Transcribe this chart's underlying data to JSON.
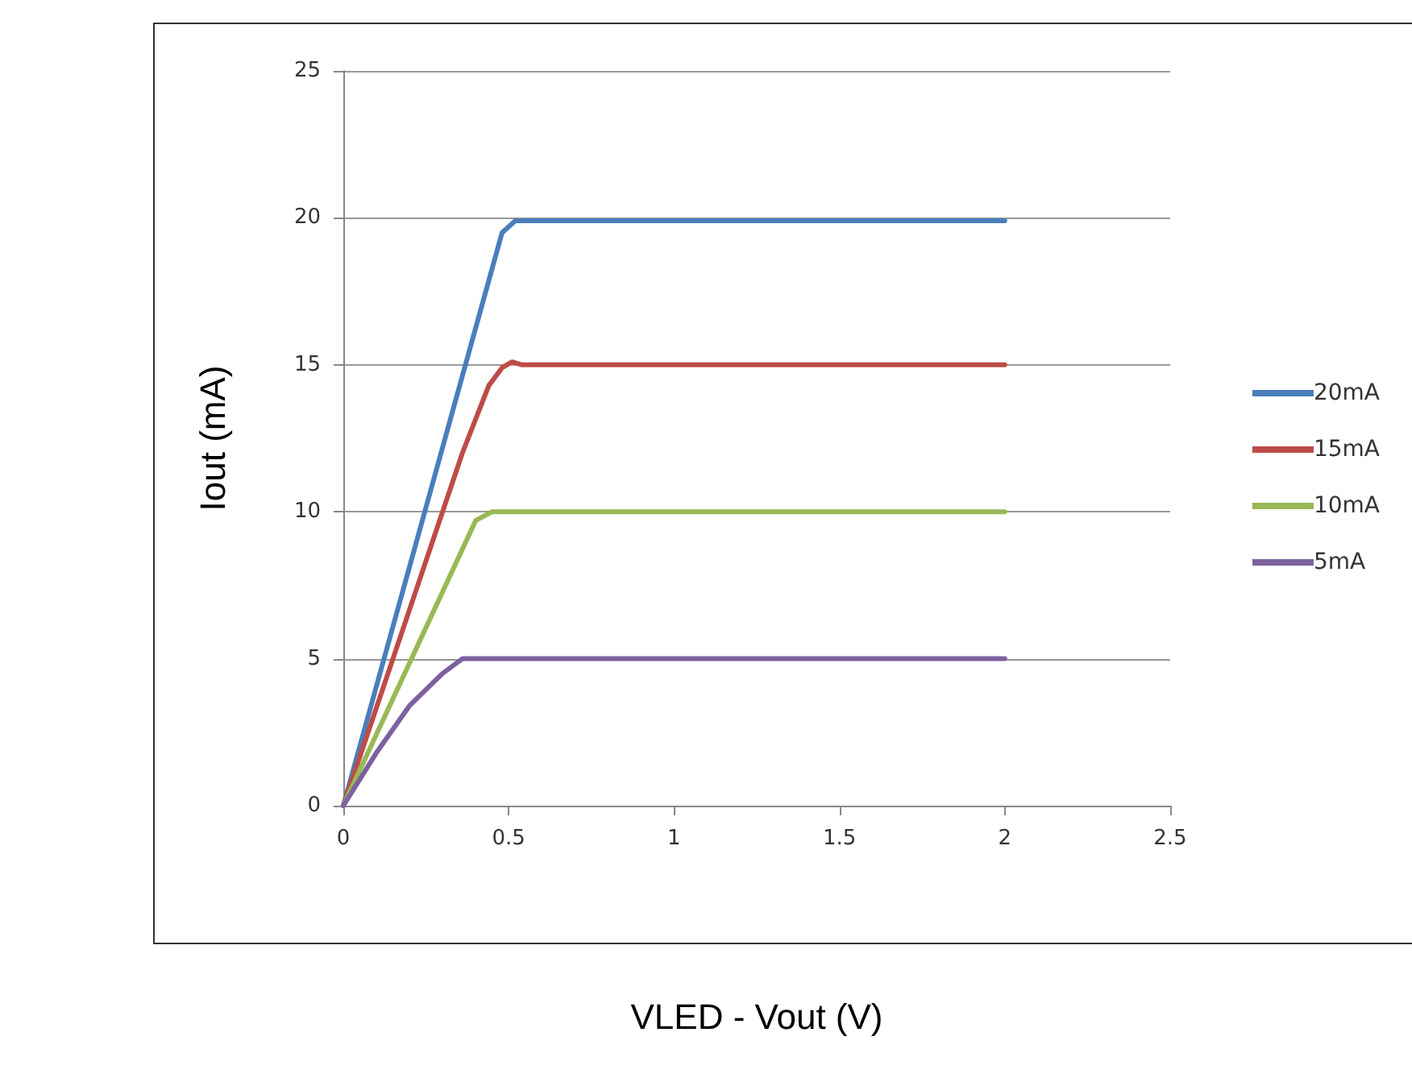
{
  "chart_data": {
    "type": "line",
    "xlabel": "VLED - Vout (V)",
    "ylabel": "Iout (mA)",
    "xlim": [
      0,
      2.5
    ],
    "xticks": [
      0,
      0.5,
      1,
      1.5,
      2,
      2.5
    ],
    "ylim": [
      0,
      25
    ],
    "yticks": [
      0,
      5,
      10,
      15,
      20,
      25
    ],
    "grid": "y",
    "legend": "right",
    "marker": "none",
    "line_style": "solid",
    "series": [
      {
        "name": "20mA",
        "color": "#4a7ebb",
        "x": [
          0,
          0.48,
          0.52,
          2
        ],
        "values": [
          0,
          19.5,
          19.9,
          19.9
        ]
      },
      {
        "name": "15mA",
        "color": "#be4b48",
        "x": [
          0,
          0.3,
          0.36,
          0.44,
          0.48,
          0.51,
          0.54,
          2
        ],
        "values": [
          0,
          10,
          12,
          14.3,
          14.9,
          15.1,
          15,
          15
        ]
      },
      {
        "name": "10mA",
        "color": "#98b954",
        "x": [
          0,
          0.4,
          0.45,
          2
        ],
        "values": [
          0,
          9.7,
          10,
          10
        ]
      },
      {
        "name": "5mA",
        "color": "#7d60a0",
        "x": [
          0,
          0.1,
          0.2,
          0.3,
          0.36,
          2
        ],
        "values": [
          0,
          1.8,
          3.4,
          4.5,
          5,
          5
        ]
      }
    ]
  }
}
